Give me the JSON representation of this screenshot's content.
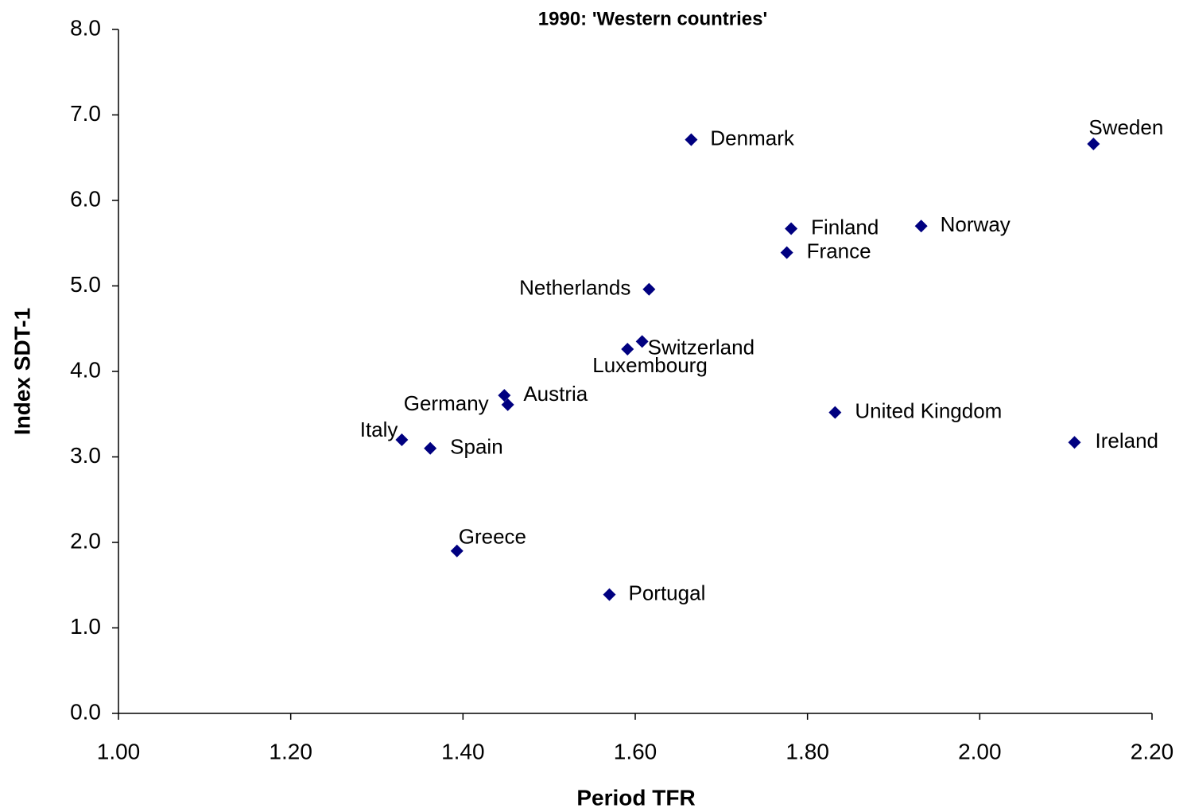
{
  "chart_data": {
    "type": "scatter",
    "title": "1990: 'Western countries'",
    "x_label": "Period TFR",
    "y_label": "Index SDT-1",
    "labels": [
      "Denmark",
      "Sweden",
      "Finland",
      "Norway",
      "France",
      "Netherlands",
      "Switzerland",
      "Luxembourg",
      "Austria",
      "Germany",
      "United Kingdom",
      "Ireland",
      "Italy",
      "Spain",
      "Greece",
      "Portugal"
    ],
    "x": [
      1.665,
      2.132,
      1.781,
      1.932,
      1.776,
      1.616,
      1.608,
      1.591,
      1.448,
      1.452,
      1.832,
      2.11,
      1.329,
      1.362,
      1.393,
      1.57
    ],
    "values": [
      6.71,
      6.66,
      5.67,
      5.7,
      5.39,
      4.96,
      4.35,
      4.26,
      3.72,
      3.61,
      3.52,
      3.17,
      3.2,
      3.1,
      1.9,
      1.39
    ],
    "color": "#000080",
    "xlim": [
      1.0,
      2.2
    ],
    "xticks": [
      {
        "value": 1.0,
        "label": "1.00"
      },
      {
        "value": 1.2,
        "label": "1.20"
      },
      {
        "value": 1.4,
        "label": "1.40"
      },
      {
        "value": 1.6,
        "label": "1.60"
      },
      {
        "value": 1.8,
        "label": "1.80"
      },
      {
        "value": 2.0,
        "label": "2.00"
      },
      {
        "value": 2.2,
        "label": "2.20"
      }
    ],
    "ylim": [
      0,
      8
    ],
    "yticks": [
      {
        "value": 0,
        "label": "0.0"
      },
      {
        "value": 1,
        "label": "1.0"
      },
      {
        "value": 2,
        "label": "2.0"
      },
      {
        "value": 3,
        "label": "3.0"
      },
      {
        "value": 4,
        "label": "4.0"
      },
      {
        "value": 5,
        "label": "5.0"
      },
      {
        "value": 6,
        "label": "6.0"
      },
      {
        "value": 7,
        "label": "7.0"
      },
      {
        "value": 8,
        "label": "8.0"
      }
    ]
  }
}
